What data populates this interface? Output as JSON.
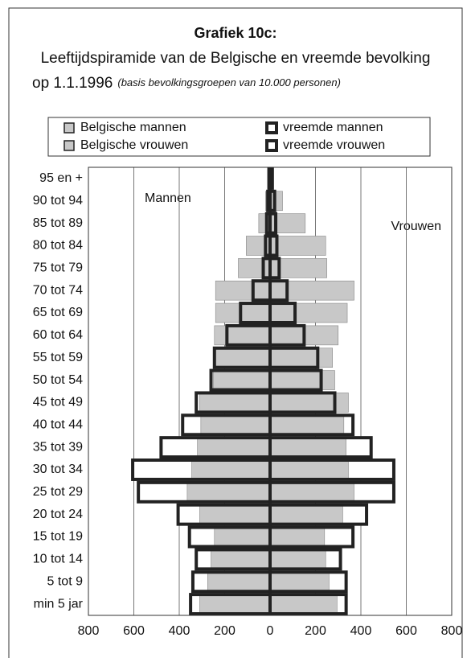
{
  "chart_data": {
    "type": "pyramid",
    "title": "Grafiek 10c:",
    "subtitle": "Leeftijdspiramide van de Belgische en vreemde bevolking",
    "subtitle2": "op 1.1.1996",
    "note": "(basis bevolkingsgroepen van 10.000 personen)",
    "annotations": [
      "Mannen",
      "Vrouwen"
    ],
    "categories": [
      "95 en +",
      "90 tot 94",
      "85 tot 89",
      "80 tot 84",
      "75 tot 79",
      "70 tot 74",
      "65 tot 69",
      "60 tot 64",
      "55 tot 59",
      "50 tot 54",
      "45 tot 49",
      "40 tot 44",
      "35 tot 39",
      "30 tot 34",
      "25 tot 29",
      "20 tot 24",
      "15 tot 19",
      "10 tot 14",
      "5 tot 9",
      "min 5 jar"
    ],
    "series": [
      {
        "name": "Belgische mannen",
        "color": "#c8c8c8",
        "side": "left",
        "style": "filled",
        "values": [
          10,
          20,
          50,
          105,
          140,
          240,
          240,
          245,
          240,
          250,
          310,
          305,
          320,
          345,
          365,
          310,
          245,
          260,
          275,
          310
        ]
      },
      {
        "name": "Belgische vrouwen",
        "color": "#c8c8c8",
        "side": "right",
        "style": "filled",
        "values": [
          15,
          55,
          155,
          245,
          250,
          370,
          340,
          300,
          275,
          285,
          345,
          325,
          335,
          345,
          370,
          320,
          240,
          245,
          260,
          295
        ]
      },
      {
        "name": "vreemde mannen",
        "color": "#222222",
        "side": "left",
        "style": "outline",
        "values": [
          5,
          10,
          15,
          20,
          30,
          75,
          130,
          190,
          245,
          260,
          325,
          385,
          480,
          605,
          580,
          405,
          355,
          325,
          340,
          350
        ]
      },
      {
        "name": "vreemde vrouwen",
        "color": "#222222",
        "side": "right",
        "style": "outline",
        "values": [
          10,
          20,
          25,
          30,
          40,
          75,
          110,
          150,
          210,
          225,
          285,
          365,
          445,
          545,
          545,
          425,
          365,
          310,
          335,
          335
        ]
      }
    ],
    "xlim": [
      -800,
      800
    ],
    "xticks": [
      {
        "value": -800,
        "label": "800"
      },
      {
        "value": -600,
        "label": "600"
      },
      {
        "value": -400,
        "label": "400"
      },
      {
        "value": -200,
        "label": "200"
      },
      0,
      200,
      400,
      600,
      800
    ],
    "grid": true
  }
}
